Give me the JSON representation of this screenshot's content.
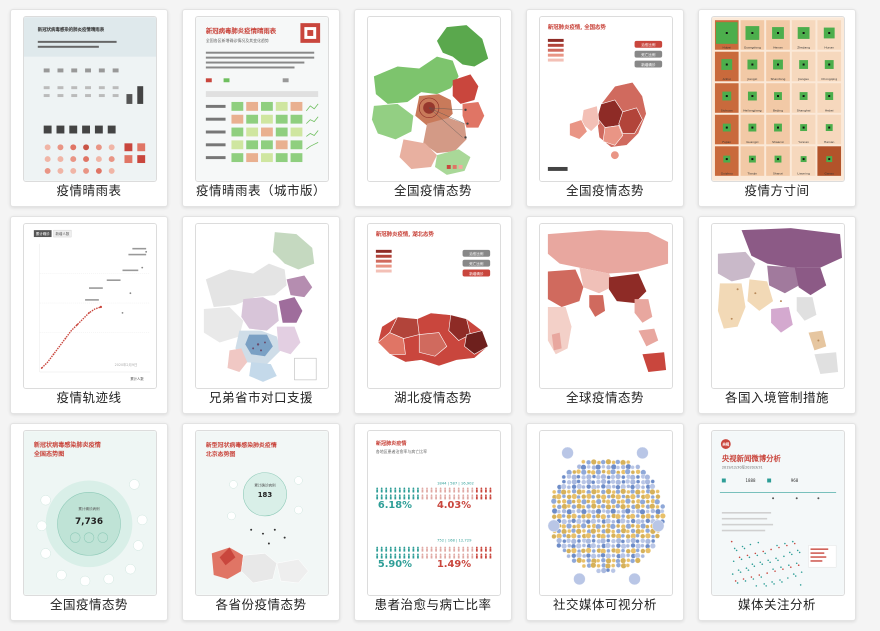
{
  "colors": {
    "red": "#c9463d",
    "dark_red": "#8e2b26",
    "green": "#6fbf5f",
    "teal": "#2e9e97",
    "purple": "#8c5a86",
    "beige": "#f4d5b8",
    "pink": "#f3a8a0"
  },
  "cards": [
    {
      "label": "疫情晴雨表",
      "thumb": {
        "title": "新冠状病毒感染的肺炎疫情晴雨表"
      }
    },
    {
      "label": "疫情晴雨表（城市版）",
      "thumb": {
        "title": "新冠病毒肺炎疫情晴雨表",
        "subtitle": "全国各区新增确诊情况及其变化趋势"
      }
    },
    {
      "label": "全国疫情态势",
      "thumb": {}
    },
    {
      "label": "全国疫情态势",
      "thumb": {
        "title": "新冠肺炎疫情, 全国态势",
        "buttons": [
          "治愈比例",
          "死亡比例",
          "新增确诊"
        ]
      }
    },
    {
      "label": "疫情方寸间",
      "thumb": {
        "cells": [
          "Hubei",
          "Guangdong",
          "Henan",
          "Zhejiang",
          "Hunan",
          "Anhui",
          "Jiangxi",
          "Shandong",
          "Jiangsu",
          "Chongqing",
          "Sichuan",
          "Heilongjiang",
          "Beijing",
          "Shanghai",
          "Hebei",
          "Fujian",
          "Guangxi",
          "Shaanxi",
          "Yunnan",
          "Hainan",
          "Guizhou",
          "Tianjin",
          "Shanxi",
          "Liaoning",
          "Gansu"
        ]
      }
    },
    {
      "label": "疫情轨迹线",
      "thumb": {
        "tabs": [
          "累计确诊",
          "新增人数"
        ],
        "date": "2020年2月9日",
        "xlabel": "累计人数"
      }
    },
    {
      "label": "兄弟省市对口支援",
      "thumb": {}
    },
    {
      "label": "湖北疫情态势",
      "thumb": {
        "title": "新冠肺炎疫情, 湖北态势",
        "buttons": [
          "治愈比例",
          "死亡比例",
          "新增确诊"
        ]
      }
    },
    {
      "label": "全球疫情态势",
      "thumb": {}
    },
    {
      "label": "各国入境管制措施",
      "thumb": {}
    },
    {
      "label": "全国疫情态势",
      "thumb": {
        "title": "新冠状病毒感染肺炎疫情",
        "subtitle": "全国态势图",
        "center_label": "累计确诊病例",
        "value": "7,736"
      }
    },
    {
      "label": "各省份疫情态势",
      "thumb": {
        "title": "新型冠状病毒感染肺炎疫情",
        "subtitle": "北京态势图",
        "center_label": "累计确诊病例",
        "value": "183"
      }
    },
    {
      "label": "患者治愈与病亡比率",
      "thumb": {
        "title": "新冠肺炎疫情",
        "subtitle": "各地区患者治愈率与病亡比率",
        "stat1": "6.18%",
        "stat2": "4.03%",
        "stat3": "5.90%",
        "stat4": "1.49%",
        "row1": "1844 | 587 | 16,902",
        "row2": "752 | 168 | 12,729"
      }
    },
    {
      "label": "社交媒体可视分析",
      "thumb": {}
    },
    {
      "label": "媒体关注分析",
      "thumb": {
        "logo": "央视",
        "title": "央视新闻微博分析",
        "date": "2019/12/30至2020/3/31",
        "stat_a": "1888",
        "stat_b": "968"
      }
    }
  ]
}
